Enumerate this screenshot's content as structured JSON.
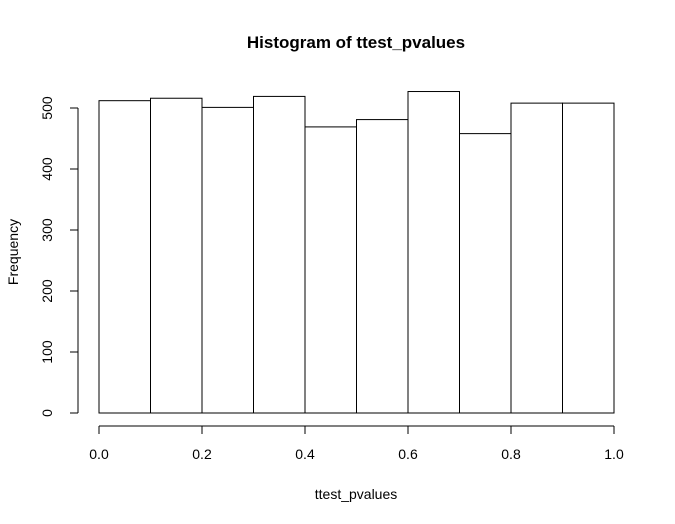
{
  "chart_data": {
    "type": "bar",
    "title": "Histogram of ttest_pvalues",
    "xlabel": "ttest_pvalues",
    "ylabel": "Frequency",
    "bins": [
      {
        "x0": 0.0,
        "x1": 0.1,
        "count": 512
      },
      {
        "x0": 0.1,
        "x1": 0.2,
        "count": 516
      },
      {
        "x0": 0.2,
        "x1": 0.3,
        "count": 501
      },
      {
        "x0": 0.3,
        "x1": 0.4,
        "count": 519
      },
      {
        "x0": 0.4,
        "x1": 0.5,
        "count": 469
      },
      {
        "x0": 0.5,
        "x1": 0.6,
        "count": 481
      },
      {
        "x0": 0.6,
        "x1": 0.7,
        "count": 527
      },
      {
        "x0": 0.7,
        "x1": 0.8,
        "count": 458
      },
      {
        "x0": 0.8,
        "x1": 0.9,
        "count": 508
      },
      {
        "x0": 0.9,
        "x1": 1.0,
        "count": 508
      }
    ],
    "xlim": [
      0.0,
      1.0
    ],
    "ylim": [
      0,
      500
    ],
    "xticks": [
      "0.0",
      "0.2",
      "0.4",
      "0.6",
      "0.8",
      "1.0"
    ],
    "yticks": [
      "0",
      "100",
      "200",
      "300",
      "400",
      "500"
    ],
    "grid": false,
    "colors": {
      "bar_fill": "#ffffff",
      "bar_stroke": "#000000"
    }
  }
}
